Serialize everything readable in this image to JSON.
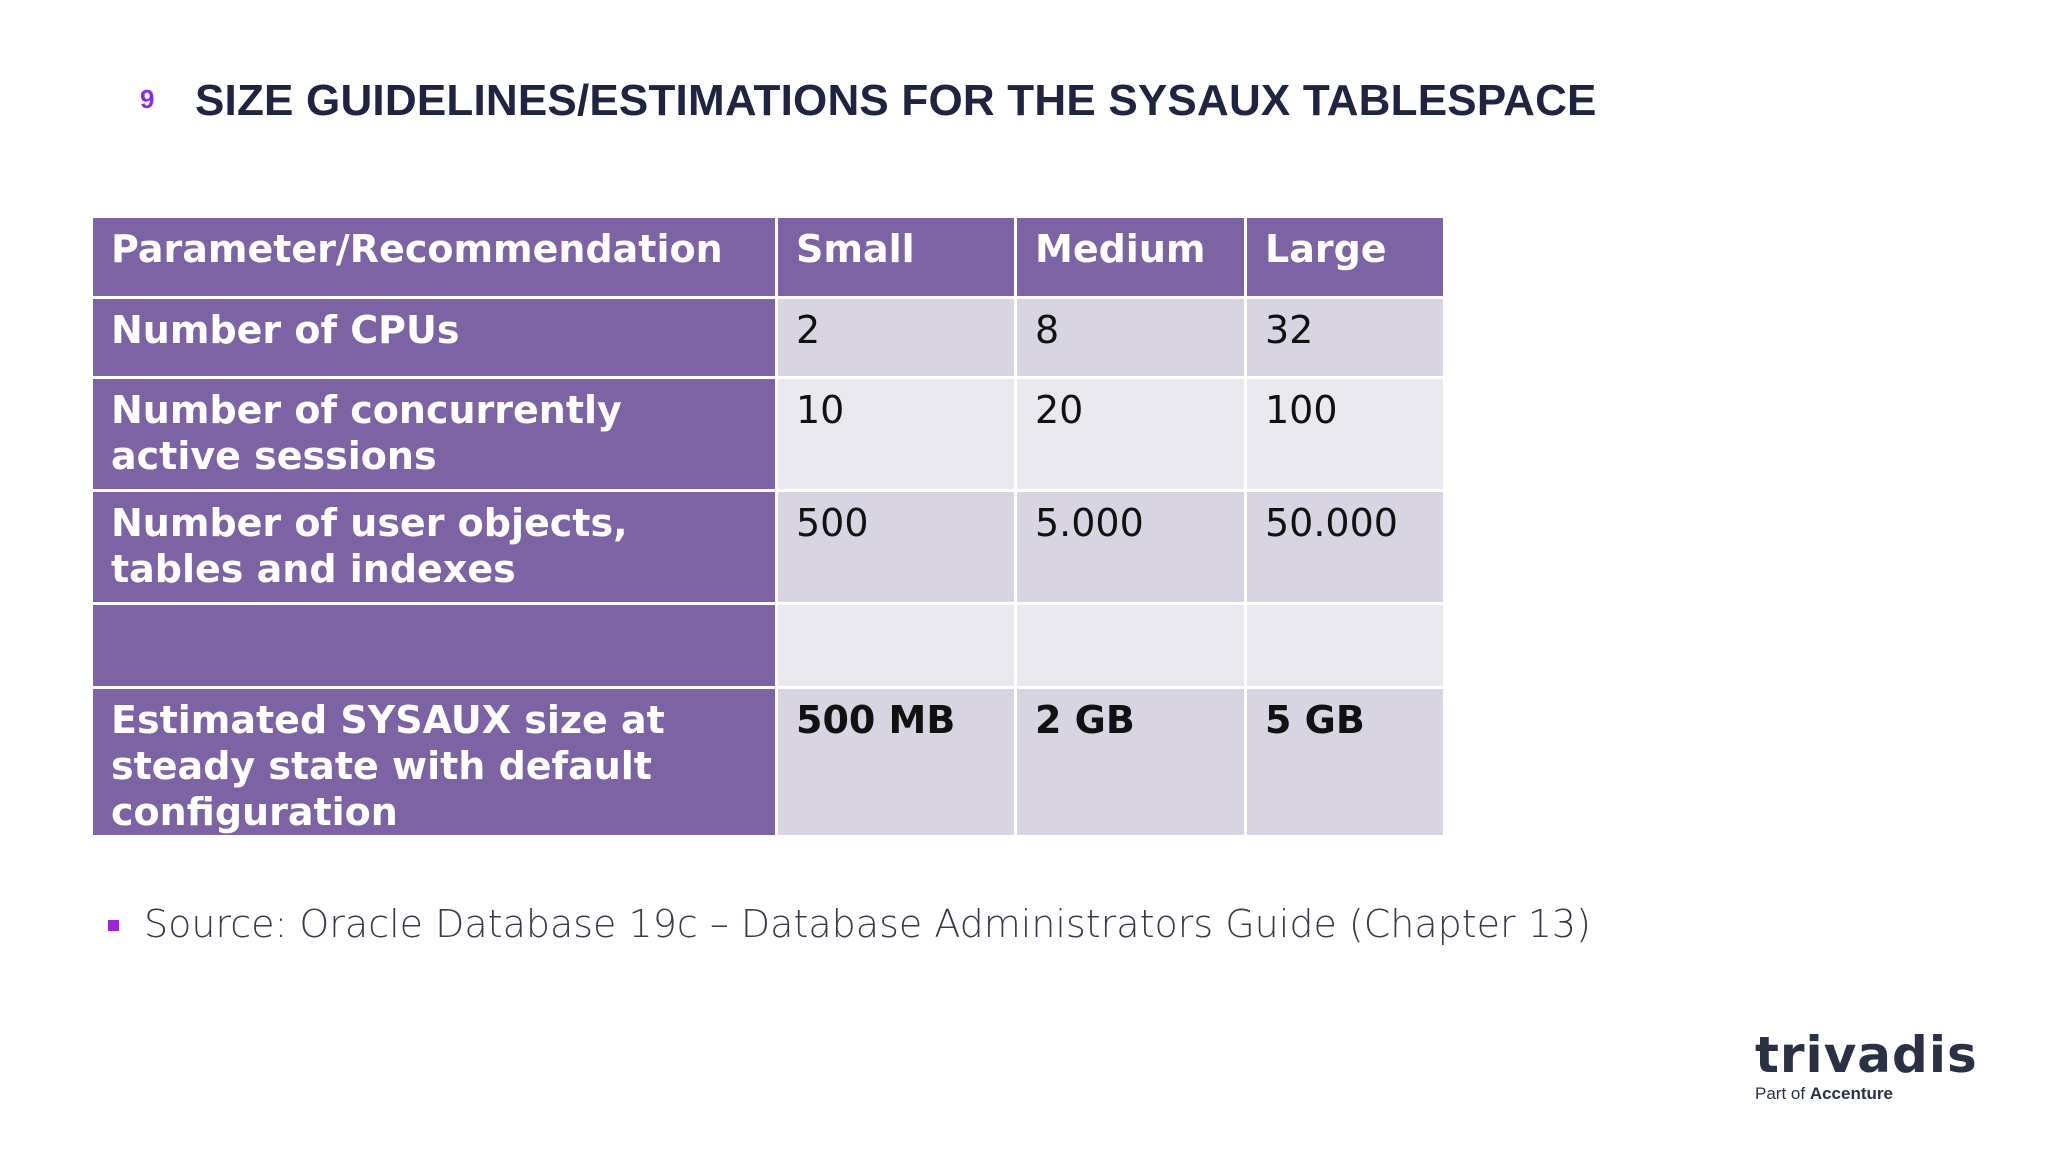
{
  "slide": {
    "number": "9",
    "title": "SIZE GUIDELINES/ESTIMATIONS FOR THE SYSAUX TABLESPACE"
  },
  "table": {
    "headers": [
      "Parameter/Recommendation",
      "Small",
      "Medium",
      "Large"
    ],
    "rows": [
      {
        "param": "Number of CPUs",
        "small": "2",
        "medium": "8",
        "large": "32"
      },
      {
        "param": "Number of concurrently active sessions",
        "small": "10",
        "medium": "20",
        "large": "100"
      },
      {
        "param": "Number of user objects, tables and indexes",
        "small": "500",
        "medium": "5.000",
        "large": "50.000"
      },
      {
        "param": "",
        "small": "",
        "medium": "",
        "large": ""
      },
      {
        "param": "Estimated SYSAUX size at steady state with default configuration",
        "small": "500 MB",
        "medium": "2 GB",
        "large": "5 GB"
      }
    ]
  },
  "source": {
    "text": "Source: Oracle Database 19c – Database Administrators Guide (Chapter 13)"
  },
  "logo": {
    "brand": "trivadis",
    "tagline_prefix": "Part of",
    "tagline_company": "Accenture"
  }
}
